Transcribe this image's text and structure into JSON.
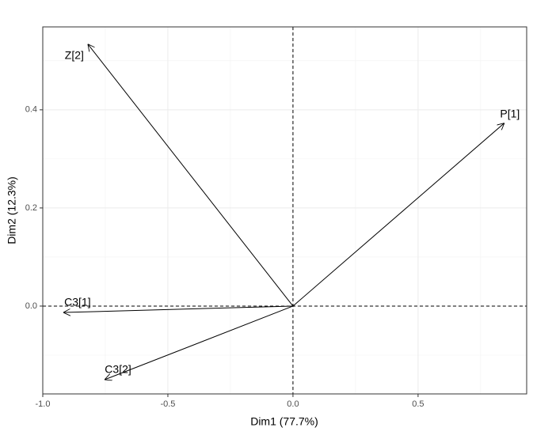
{
  "chart_data": {
    "type": "vector",
    "labels": [
      "P[1]",
      "Z[2]",
      "C3[1]",
      "C3[2]"
    ],
    "x": [
      0.845,
      -0.82,
      -0.918,
      -0.753
    ],
    "values": [
      0.373,
      0.534,
      -0.013,
      -0.15
    ],
    "color": "#000000",
    "x_label": "Dim1 (77.7%)",
    "y_label": "Dim2 (12.3%)",
    "xlim": [
      -1.0,
      0.934
    ],
    "ylim": [
      -0.179,
      0.569
    ],
    "xticks": [
      {
        "value": -1.0,
        "label": "-1.0"
      },
      -0.5,
      {
        "value": 0.0,
        "label": "0.0"
      },
      0.5
    ],
    "yticks": [
      {
        "value": 0.0,
        "label": "0.0"
      },
      0.2,
      0.4
    ],
    "grid": true
  }
}
